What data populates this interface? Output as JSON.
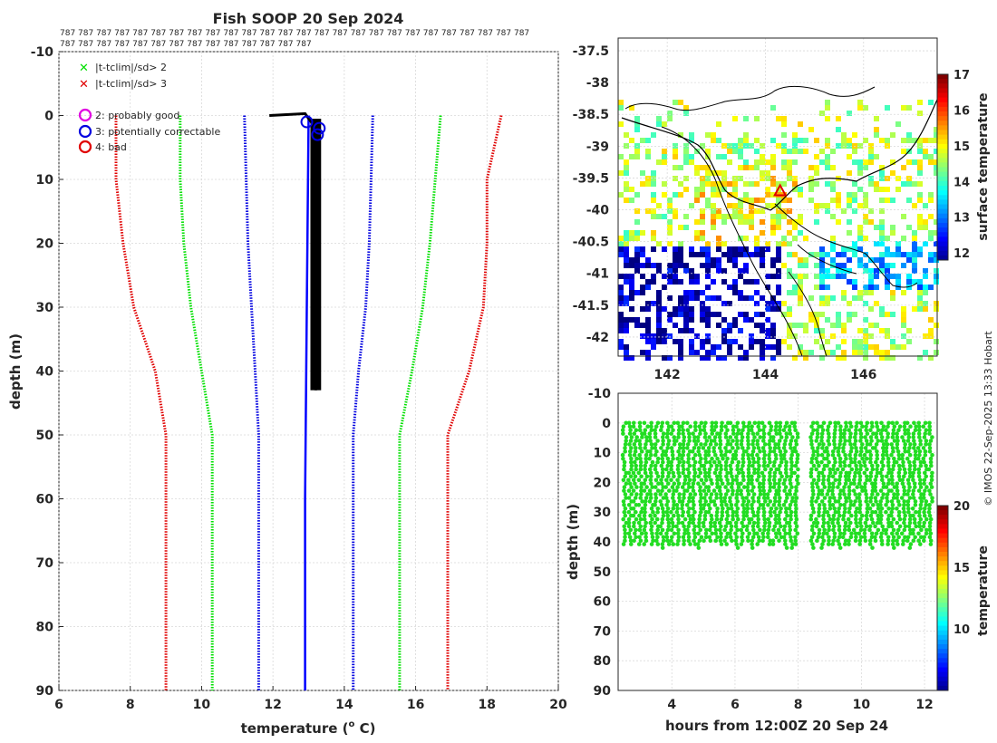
{
  "chart_data": [
    {
      "type": "line",
      "name": "profile",
      "title": "Fish SOOP 20 Sep 2024",
      "xlabel": "temperature (",
      "xlabel_sup": "o",
      "xlabel_tail": " C)",
      "ylabel": "depth (m)",
      "xlim": [
        6,
        20
      ],
      "ylim": [
        -10,
        90
      ],
      "xticks": [
        "6",
        "8",
        "10",
        "12",
        "14",
        "16",
        "18",
        "20"
      ],
      "yticks": [
        "-10",
        "0",
        "10",
        "20",
        "30",
        "40",
        "50",
        "60",
        "70",
        "80",
        "90"
      ],
      "header_label": "787",
      "header_row1_count": 26,
      "header_row2_count": 14,
      "legend": [
        {
          "marker": "x",
          "color": "#00e000",
          "label": "|t-tclim|/sd> 2"
        },
        {
          "marker": "x",
          "color": "#e00000",
          "label": "|t-tclim|/sd> 3"
        },
        {
          "marker": "o",
          "color": "#e000e0",
          "label": "2: probably good"
        },
        {
          "marker": "o",
          "color": "#0000e0",
          "label": "3: potentially correctable"
        },
        {
          "marker": "o",
          "color": "#e00000",
          "label": "4: bad"
        }
      ],
      "series": [
        {
          "name": "clim -3sd",
          "color": "#e00000",
          "depth": [
            0,
            10,
            20,
            30,
            40,
            50,
            90
          ],
          "values": [
            7.6,
            7.6,
            7.8,
            8.1,
            8.7,
            9.0,
            9.0
          ]
        },
        {
          "name": "clim -2sd",
          "color": "#00e000",
          "depth": [
            0,
            10,
            20,
            30,
            40,
            50,
            90
          ],
          "values": [
            9.4,
            9.4,
            9.5,
            9.7,
            10.0,
            10.3,
            10.3
          ]
        },
        {
          "name": "clim -1sd",
          "color": "#0000e0",
          "depth": [
            0,
            10,
            20,
            30,
            40,
            50,
            90
          ],
          "values": [
            11.2,
            11.25,
            11.3,
            11.4,
            11.5,
            11.6,
            11.6
          ]
        },
        {
          "name": "clim +1sd",
          "color": "#0000e0",
          "depth": [
            0,
            10,
            20,
            30,
            40,
            50,
            90
          ],
          "values": [
            14.8,
            14.75,
            14.7,
            14.6,
            14.4,
            14.25,
            14.25
          ]
        },
        {
          "name": "clim +2sd",
          "color": "#00e000",
          "depth": [
            0,
            10,
            20,
            30,
            40,
            50,
            90
          ],
          "values": [
            16.7,
            16.55,
            16.4,
            16.2,
            15.9,
            15.55,
            15.55
          ]
        },
        {
          "name": "clim +3sd",
          "color": "#e00000",
          "depth": [
            0,
            10,
            20,
            30,
            40,
            50,
            90
          ],
          "values": [
            18.4,
            18.0,
            18.0,
            17.9,
            17.5,
            16.9,
            16.9
          ]
        },
        {
          "name": "mean",
          "color": "#0000ff",
          "depth": [
            0,
            30,
            60,
            90
          ],
          "values": [
            13.0,
            12.95,
            12.9,
            12.9
          ]
        },
        {
          "name": "observed",
          "color": "#000000",
          "depth": [
            0,
            -0.3,
            2,
            5,
            10,
            20,
            30,
            40,
            43
          ],
          "values": [
            11.9,
            12.9,
            13.2,
            13.1,
            13.2,
            13.25,
            13.2,
            13.2,
            13.2
          ]
        }
      ],
      "flag_circles": [
        {
          "temp": 12.95,
          "depth": 1
        },
        {
          "temp": 13.3,
          "depth": 2
        },
        {
          "temp": 13.25,
          "depth": 3
        }
      ]
    },
    {
      "type": "heatmap",
      "name": "map",
      "xlim": [
        141,
        147.5
      ],
      "ylim": [
        -42.3,
        -37.3
      ],
      "xticks": [
        "142",
        "144",
        "146"
      ],
      "yticks": [
        "-37.5",
        "-38",
        "-38.5",
        "-39",
        "-39.5",
        "-40",
        "-40.5",
        "-41",
        "-41.5",
        "-42"
      ],
      "colorbar_label": "surface temperature",
      "colorbar_range": [
        11.8,
        17
      ],
      "colorbar_ticks": [
        "12",
        "13",
        "14",
        "15",
        "16",
        "17"
      ],
      "marker": {
        "lon": 144.3,
        "lat": -39.7
      }
    },
    {
      "type": "scatter",
      "name": "timeseries",
      "xlabel": "hours from 12:00Z 20 Sep 24",
      "ylabel": "depth (m)",
      "xlim": [
        2.3,
        12.4
      ],
      "ylim": [
        -10,
        90
      ],
      "xticks": [
        "4",
        "6",
        "8",
        "10",
        "12"
      ],
      "yticks": [
        "-10",
        "0",
        "10",
        "20",
        "30",
        "40",
        "50",
        "60",
        "70",
        "80",
        "90"
      ],
      "colorbar_label": "temperature",
      "colorbar_range": [
        5,
        20
      ],
      "colorbar_ticks": [
        "10",
        "15",
        "20"
      ],
      "gap_hours": [
        8.05,
        8.4
      ],
      "depth_range": [
        0,
        43
      ]
    }
  ],
  "credit": "© IMOS 22-Sep-2025 13:33 Hobart"
}
